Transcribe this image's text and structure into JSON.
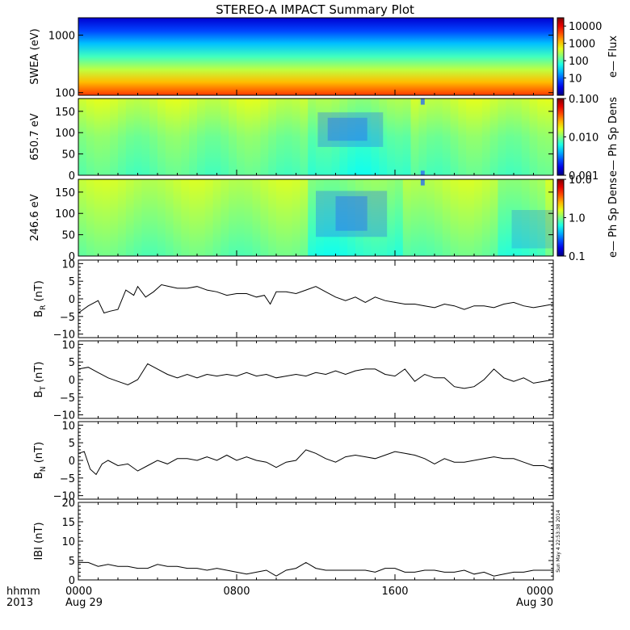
{
  "title": "STEREO-A IMPACT Summary Plot",
  "timestamp_vertical": "Sun May  4 22:53:38 2014",
  "x_axis": {
    "ticks": [
      "0000",
      "0800",
      "1600",
      "0000"
    ],
    "tick_hours": [
      0,
      8,
      16,
      24
    ],
    "sublabels": [
      "Aug 29",
      "",
      "",
      "Aug 30"
    ],
    "left_label_1": "hhmm",
    "left_label_2": "2013"
  },
  "chart_data": [
    {
      "type": "heatmap",
      "ylabel": "SWEA (eV)",
      "yscale": "log",
      "ylim": [
        90,
        2000
      ],
      "yticks": [
        "1000",
        "100"
      ],
      "ytick_values": [
        1000,
        100
      ],
      "colorbar": {
        "label": "e— Flux",
        "scale": "log",
        "range": [
          1,
          30000
        ],
        "ticks": [
          "10000",
          "1000",
          "100",
          "10"
        ],
        "tick_values": [
          10000,
          1000,
          100,
          10
        ]
      }
    },
    {
      "type": "heatmap",
      "ylabel": "650.7 eV",
      "ylim": [
        0,
        180
      ],
      "yticks": [
        "150",
        "100",
        "50",
        "0"
      ],
      "ytick_values": [
        150,
        100,
        50,
        0
      ],
      "colorbar": {
        "label": "e— Ph Sp Dens",
        "scale": "log",
        "range": [
          0.001,
          0.1
        ],
        "ticks": [
          "0.100",
          "0.010",
          "0.001"
        ],
        "tick_values": [
          0.1,
          0.01,
          0.001
        ]
      }
    },
    {
      "type": "heatmap",
      "ylabel": "246.6 eV",
      "ylim": [
        0,
        180
      ],
      "yticks": [
        "150",
        "100",
        "50",
        "0"
      ],
      "ytick_values": [
        150,
        100,
        50,
        0
      ],
      "colorbar": {
        "label": "e— Ph Sp Dens",
        "scale": "log",
        "range": [
          0.1,
          10
        ],
        "ticks": [
          "10.0",
          "1.0",
          "0.1"
        ],
        "tick_values": [
          10,
          1,
          0.1
        ]
      }
    },
    {
      "type": "line",
      "ylabel_main": "B",
      "ylabel_sub": "R",
      "ylabel_unit": "(nT)",
      "ylim": [
        -11,
        11
      ],
      "yticks": [
        "10",
        "5",
        "0",
        "−5",
        "−10"
      ],
      "ytick_values": [
        10,
        5,
        0,
        -5,
        -10
      ],
      "x_hours": [
        0,
        0.5,
        1,
        1.3,
        1.6,
        2,
        2.4,
        2.8,
        3,
        3.4,
        3.8,
        4.2,
        4.6,
        5,
        5.5,
        6,
        6.5,
        7,
        7.5,
        8,
        8.5,
        9,
        9.4,
        9.7,
        10,
        10.5,
        11,
        11.5,
        12,
        12.5,
        13,
        13.5,
        14,
        14.5,
        15,
        15.5,
        16,
        16.5,
        17,
        17.5,
        18,
        18.5,
        19,
        19.5,
        20,
        20.5,
        21,
        21.5,
        22,
        22.5,
        23,
        23.5,
        24
      ],
      "values": [
        -4,
        -2,
        -0.5,
        -4,
        -3.5,
        -3,
        2.5,
        1,
        3.5,
        0.5,
        2,
        4,
        3.5,
        3,
        3,
        3.5,
        2.5,
        2,
        1,
        1.5,
        1.5,
        0.5,
        1,
        -1.5,
        2,
        2,
        1.5,
        2.5,
        3.5,
        2,
        0.5,
        -0.5,
        0.5,
        -1,
        0.5,
        -0.5,
        -1,
        -1.5,
        -1.5,
        -2,
        -2.5,
        -1.5,
        -2,
        -3,
        -2,
        -2,
        -2.5,
        -1.5,
        -1,
        -2,
        -2.5,
        -2,
        -1.5
      ]
    },
    {
      "type": "line",
      "ylabel_main": "B",
      "ylabel_sub": "T",
      "ylabel_unit": "(nT)",
      "ylim": [
        -11,
        11
      ],
      "yticks": [
        "10",
        "5",
        "0",
        "−5",
        "−10"
      ],
      "ytick_values": [
        10,
        5,
        0,
        -5,
        -10
      ],
      "x_hours": [
        0,
        0.5,
        1,
        1.5,
        2,
        2.5,
        3,
        3.5,
        4,
        4.5,
        5,
        5.5,
        6,
        6.5,
        7,
        7.5,
        8,
        8.5,
        9,
        9.5,
        10,
        10.5,
        11,
        11.5,
        12,
        12.5,
        13,
        13.5,
        14,
        14.5,
        15,
        15.5,
        16,
        16.5,
        17,
        17.5,
        18,
        18.5,
        19,
        19.5,
        20,
        20.5,
        21,
        21.5,
        22,
        22.5,
        23,
        23.5,
        24
      ],
      "values": [
        3,
        3.5,
        2,
        0.5,
        -0.5,
        -1.5,
        0,
        4.5,
        3,
        1.5,
        0.5,
        1.5,
        0.5,
        1.5,
        1,
        1.5,
        1,
        2,
        1,
        1.5,
        0.5,
        1,
        1.5,
        1,
        2,
        1.5,
        2.5,
        1.5,
        2.5,
        3,
        3,
        1.5,
        1,
        3,
        -0.5,
        1.5,
        0.5,
        0.5,
        -2,
        -2.5,
        -2,
        0,
        3,
        0.5,
        -0.5,
        0.5,
        -1,
        -0.5,
        0
      ]
    },
    {
      "type": "line",
      "ylabel_main": "B",
      "ylabel_sub": "N",
      "ylabel_unit": "(nT)",
      "ylim": [
        -11,
        11
      ],
      "yticks": [
        "10",
        "5",
        "0",
        "−5",
        "−10"
      ],
      "ytick_values": [
        10,
        5,
        0,
        -5,
        -10
      ],
      "x_hours": [
        0,
        0.3,
        0.6,
        0.9,
        1.2,
        1.5,
        2,
        2.5,
        3,
        3.5,
        4,
        4.5,
        5,
        5.5,
        6,
        6.5,
        7,
        7.5,
        8,
        8.5,
        9,
        9.5,
        10,
        10.5,
        11,
        11.5,
        12,
        12.5,
        13,
        13.5,
        14,
        14.5,
        15,
        15.5,
        16,
        16.5,
        17,
        17.5,
        18,
        18.5,
        19,
        19.5,
        20,
        20.5,
        21,
        21.5,
        22,
        22.5,
        23,
        23.5,
        24
      ],
      "values": [
        2,
        2.5,
        -2.5,
        -4,
        -1,
        0,
        -1.5,
        -1,
        -3,
        -1.5,
        0,
        -1,
        0.5,
        0.5,
        0,
        1,
        0,
        1.5,
        0,
        1,
        0,
        -0.5,
        -2,
        -0.5,
        0,
        3,
        2,
        0.5,
        -0.5,
        1,
        1.5,
        1,
        0.5,
        1.5,
        2.5,
        2,
        1.5,
        0.5,
        -1,
        0.5,
        -0.5,
        -0.5,
        0,
        0.5,
        1,
        0.5,
        0.5,
        -0.5,
        -1.5,
        -1.5,
        -2.5
      ]
    },
    {
      "type": "line",
      "ylabel": "IBI (nT)",
      "ylim": [
        0,
        20
      ],
      "yticks": [
        "20",
        "15",
        "10",
        "5",
        "0"
      ],
      "ytick_values": [
        20,
        15,
        10,
        5,
        0
      ],
      "x_hours": [
        0,
        0.5,
        1,
        1.5,
        2,
        2.5,
        3,
        3.5,
        4,
        4.5,
        5,
        5.5,
        6,
        6.5,
        7,
        7.5,
        8,
        8.5,
        9,
        9.5,
        10,
        10.5,
        11,
        11.5,
        12,
        12.5,
        13,
        13.5,
        14,
        14.5,
        15,
        15.5,
        16,
        16.5,
        17,
        17.5,
        18,
        18.5,
        19,
        19.5,
        20,
        20.5,
        21,
        21.5,
        22,
        22.5,
        23,
        23.5,
        24
      ],
      "values": [
        4.5,
        4.5,
        3.5,
        4,
        3.5,
        3.5,
        3,
        3,
        4,
        3.5,
        3.5,
        3,
        3,
        2.5,
        3,
        2.5,
        2,
        1.5,
        2,
        2.5,
        1,
        2.5,
        3,
        4.5,
        3,
        2.5,
        2.5,
        2.5,
        2.5,
        2.5,
        2,
        3,
        3,
        2,
        2,
        2.5,
        2.5,
        2,
        2,
        2.5,
        1.5,
        2,
        1,
        1.5,
        2,
        2,
        2.5,
        2.5,
        2.5
      ]
    }
  ]
}
